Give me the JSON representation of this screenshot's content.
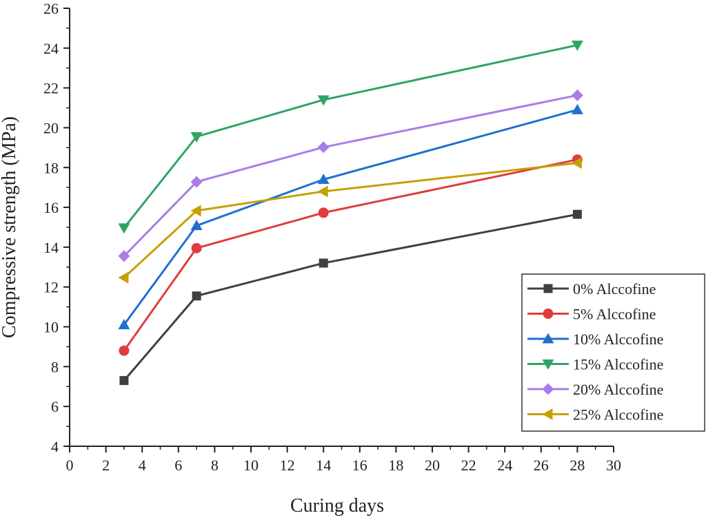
{
  "chart_data": {
    "type": "line",
    "title": "",
    "xlabel": "Curing days",
    "ylabel": "Compressive strength (MPa)",
    "xlim": [
      0,
      30
    ],
    "ylim": [
      4,
      26
    ],
    "xticks": [
      0,
      2,
      4,
      6,
      8,
      10,
      12,
      14,
      16,
      18,
      20,
      22,
      24,
      26,
      28,
      30
    ],
    "yticks": [
      4,
      6,
      8,
      10,
      12,
      14,
      16,
      18,
      20,
      22,
      24,
      26
    ],
    "grid": false,
    "legend_position": "bottom-right",
    "x": [
      3,
      7,
      14,
      28
    ],
    "series": [
      {
        "name": "0% Alccofine",
        "values": [
          7.3,
          11.55,
          13.2,
          15.65
        ],
        "color": "#404040",
        "marker": "square"
      },
      {
        "name": "5% Alccofine",
        "values": [
          8.8,
          13.95,
          15.73,
          18.4
        ],
        "color": "#e03c3c",
        "marker": "circle"
      },
      {
        "name": "10% Alccofine",
        "values": [
          10.1,
          15.08,
          17.4,
          20.9
        ],
        "color": "#1f6fd1",
        "marker": "triangle-up"
      },
      {
        "name": "15% Alccofine",
        "values": [
          14.97,
          19.55,
          21.4,
          24.15
        ],
        "color": "#2ea565",
        "marker": "triangle-down"
      },
      {
        "name": "20% Alccofine",
        "values": [
          13.55,
          17.28,
          19.02,
          21.63
        ],
        "color": "#a87de8",
        "marker": "diamond"
      },
      {
        "name": "25% Alccofine",
        "values": [
          12.47,
          15.83,
          16.8,
          18.23
        ],
        "color": "#c4a000",
        "marker": "triangle-left"
      }
    ]
  }
}
